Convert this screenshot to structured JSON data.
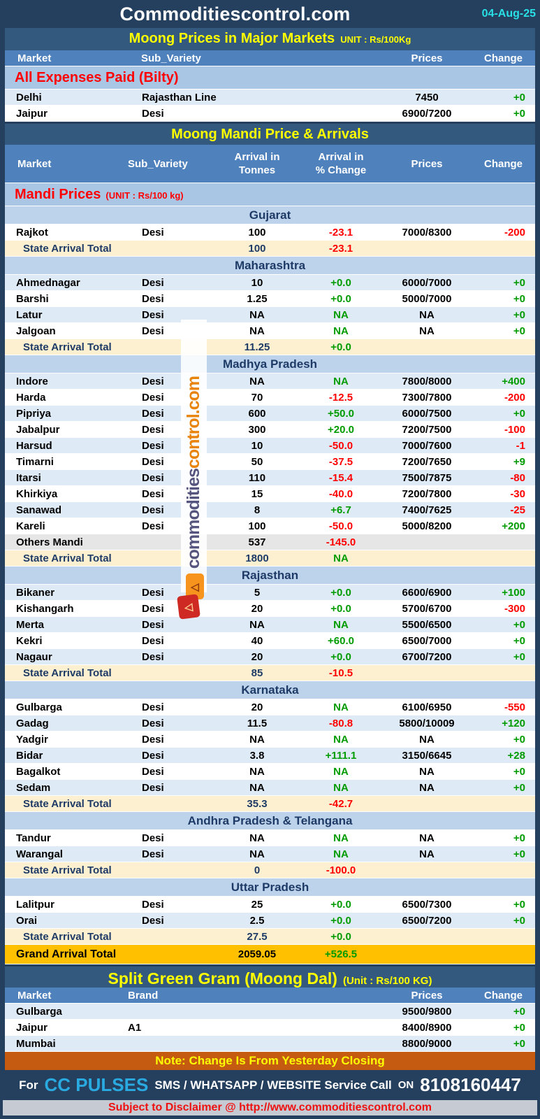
{
  "header": {
    "title": "Commoditiescontrol.com",
    "date": "04-Aug-25"
  },
  "colors": {
    "frame_navy": "#24405E",
    "section_bar": "#33597E",
    "column_header": "#4F81BD",
    "label_band": "#A9C6E5",
    "state_band": "#BDD3EB",
    "row_blue": "#DEEAF6",
    "total_cream": "#FDF0D0",
    "others_gray": "#E7E6E6",
    "grand_gold": "#FFC000",
    "note_orange": "#C55A11",
    "disclaimer_gray": "#C6CAD2",
    "red": "#FF0000",
    "green": "#009B00",
    "navy_text": "#1E3A66",
    "yellow": "#FFFF00",
    "date_cyan": "#29E0E6",
    "cc_pulses_cyan": "#29ABE2",
    "watermark_dark": "#54547E",
    "watermark_orange": "#E8830C"
  },
  "major_markets": {
    "title": "Moong Prices in Major Markets",
    "unit": "UNIT : Rs/100Kg",
    "columns": {
      "market": "Market",
      "sub_variety": "Sub_Variety",
      "prices": "Prices",
      "change": "Change"
    },
    "section_label": "All Expenses Paid (Bilty)",
    "rows": [
      {
        "market": "Delhi",
        "sub_variety": "Rajasthan Line",
        "prices": "7450",
        "change": "+0"
      },
      {
        "market": "Jaipur",
        "sub_variety": "Desi",
        "prices": "6900/7200",
        "change": "+0"
      }
    ]
  },
  "mandi": {
    "title": "Moong Mandi Price & Arrivals",
    "columns": {
      "market": "Market",
      "sub_variety": "Sub_Variety",
      "arrival_l1": "Arrival in",
      "arrival_l2": "Tonnes",
      "pct_l1": "Arrival  in",
      "pct_l2": "% Change",
      "prices": "Prices",
      "change": "Change"
    },
    "section_label": "Mandi Prices",
    "section_unit": "(UNIT : Rs/100 kg)",
    "total_label": "State Arrival Total",
    "states": [
      {
        "name": "Gujarat",
        "first_shade": "w",
        "rows": [
          {
            "market": "Rajkot",
            "sub": "Desi",
            "arrival": "100",
            "pct": "-23.1",
            "prices": "7000/8300",
            "change": "-200"
          }
        ],
        "total": {
          "arrival": "100",
          "pct": "-23.1"
        }
      },
      {
        "name": "Maharashtra",
        "first_shade": "b",
        "rows": [
          {
            "market": "Ahmednagar",
            "sub": "Desi",
            "arrival": "10",
            "pct": "+0.0",
            "prices": "6000/7000",
            "change": "+0"
          },
          {
            "market": "Barshi",
            "sub": "Desi",
            "arrival": "1.25",
            "pct": "+0.0",
            "prices": "5000/7000",
            "change": "+0"
          },
          {
            "market": "Latur",
            "sub": "Desi",
            "arrival": "NA",
            "pct": "NA",
            "prices": "NA",
            "change": "+0"
          },
          {
            "market": "Jalgoan",
            "sub": "Desi",
            "arrival": "NA",
            "pct": "NA",
            "prices": "NA",
            "change": "+0"
          }
        ],
        "total": {
          "arrival": "11.25",
          "pct": "+0.0"
        }
      },
      {
        "name": "Madhya Pradesh",
        "first_shade": "b",
        "rows": [
          {
            "market": "Indore",
            "sub": "Desi",
            "arrival": "NA",
            "pct": "NA",
            "prices": "7800/8000",
            "change": "+400"
          },
          {
            "market": "Harda",
            "sub": "Desi",
            "arrival": "70",
            "pct": "-12.5",
            "prices": "7300/7800",
            "change": "-200"
          },
          {
            "market": "Pipriya",
            "sub": "Desi",
            "arrival": "600",
            "pct": "+50.0",
            "prices": "6000/7500",
            "change": "+0"
          },
          {
            "market": "Jabalpur",
            "sub": "Desi",
            "arrival": "300",
            "pct": "+20.0",
            "prices": "7200/7500",
            "change": "-100"
          },
          {
            "market": "Harsud",
            "sub": "Desi",
            "arrival": "10",
            "pct": "-50.0",
            "prices": "7000/7600",
            "change": "-1"
          },
          {
            "market": "Timarni",
            "sub": "Desi",
            "arrival": "50",
            "pct": "-37.5",
            "prices": "7200/7650",
            "change": "+9"
          },
          {
            "market": "Itarsi",
            "sub": "Desi",
            "arrival": "110",
            "pct": "-15.4",
            "prices": "7500/7875",
            "change": "-80"
          },
          {
            "market": "Khirkiya",
            "sub": "Desi",
            "arrival": "15",
            "pct": "-40.0",
            "prices": "7200/7800",
            "change": "-30"
          },
          {
            "market": "Sanawad",
            "sub": "Desi",
            "arrival": "8",
            "pct": "+6.7",
            "prices": "7400/7625",
            "change": "-25"
          },
          {
            "market": "Kareli",
            "sub": "Desi",
            "arrival": "100",
            "pct": "-50.0",
            "prices": "5000/8200",
            "change": "+200"
          },
          {
            "market": "Others Mandi",
            "sub": "",
            "arrival": "537",
            "pct": "-145.0",
            "prices": "",
            "change": "",
            "special": "others"
          }
        ],
        "total": {
          "arrival": "1800",
          "pct": "NA"
        }
      },
      {
        "name": "Rajasthan",
        "first_shade": "b",
        "rows": [
          {
            "market": "Bikaner",
            "sub": "Desi",
            "arrival": "5",
            "pct": "+0.0",
            "prices": "6600/6900",
            "change": "+100"
          },
          {
            "market": "Kishangarh",
            "sub": "Desi",
            "arrival": "20",
            "pct": "+0.0",
            "prices": "5700/6700",
            "change": "-300"
          },
          {
            "market": "Merta",
            "sub": "Desi",
            "arrival": "NA",
            "pct": "NA",
            "prices": "5500/6500",
            "change": "+0"
          },
          {
            "market": "Kekri",
            "sub": "Desi",
            "arrival": "40",
            "pct": "+60.0",
            "prices": "6500/7000",
            "change": "+0"
          },
          {
            "market": "Nagaur",
            "sub": "Desi",
            "arrival": "20",
            "pct": "+0.0",
            "prices": "6700/7200",
            "change": "+0"
          }
        ],
        "total": {
          "arrival": "85",
          "pct": "-10.5"
        }
      },
      {
        "name": "Karnataka",
        "first_shade": "w",
        "rows": [
          {
            "market": "Gulbarga",
            "sub": "Desi",
            "arrival": "20",
            "pct": "NA",
            "prices": "6100/6950",
            "change": "-550"
          },
          {
            "market": "Gadag",
            "sub": "Desi",
            "arrival": "11.5",
            "pct": "-80.8",
            "prices": "5800/10009",
            "change": "+120"
          },
          {
            "market": "Yadgir",
            "sub": "Desi",
            "arrival": "NA",
            "pct": "NA",
            "prices": "NA",
            "change": "+0"
          },
          {
            "market": "Bidar",
            "sub": "Desi",
            "arrival": "3.8",
            "pct": "+111.1",
            "prices": "3150/6645",
            "change": "+28"
          },
          {
            "market": "Bagalkot",
            "sub": "Desi",
            "arrival": "NA",
            "pct": "NA",
            "prices": "NA",
            "change": "+0"
          },
          {
            "market": "Sedam",
            "sub": "Desi",
            "arrival": "NA",
            "pct": "NA",
            "prices": "NA",
            "change": "+0"
          }
        ],
        "total": {
          "arrival": "35.3",
          "pct": "-42.7"
        }
      },
      {
        "name": "Andhra Pradesh & Telangana",
        "first_shade": "w",
        "rows": [
          {
            "market": "Tandur",
            "sub": "Desi",
            "arrival": "NA",
            "pct": "NA",
            "prices": "NA",
            "change": "+0"
          },
          {
            "market": "Warangal",
            "sub": "Desi",
            "arrival": "NA",
            "pct": "NA",
            "prices": "NA",
            "change": "+0"
          }
        ],
        "total": {
          "arrival": "0",
          "pct": "-100.0"
        }
      },
      {
        "name": "Uttar Pradesh",
        "first_shade": "w",
        "rows": [
          {
            "market": "Lalitpur",
            "sub": "Desi",
            "arrival": "25",
            "pct": "+0.0",
            "prices": "6500/7300",
            "change": "+0"
          },
          {
            "market": "Orai",
            "sub": "Desi",
            "arrival": "2.5",
            "pct": "+0.0",
            "prices": "6500/7200",
            "change": "+0"
          }
        ],
        "total": {
          "arrival": "27.5",
          "pct": "+0.0"
        }
      }
    ],
    "grand_total": {
      "label": "Grand Arrival Total",
      "arrival": "2059.05",
      "pct": "+526.5"
    }
  },
  "split": {
    "title": "Split Green Gram (Moong Dal)",
    "unit": "(Unit : Rs/100 KG)",
    "columns": {
      "market": "Market",
      "brand": "Brand",
      "prices": "Prices",
      "change": "Change"
    },
    "rows": [
      {
        "market": "Gulbarga",
        "brand": "",
        "prices": "9500/9800",
        "change": "+0"
      },
      {
        "market": "Jaipur",
        "brand": "A1",
        "prices": "8400/8900",
        "change": "+0"
      },
      {
        "market": "Mumbai",
        "brand": "",
        "prices": "8800/9000",
        "change": "+0"
      }
    ]
  },
  "footer": {
    "note": "Note: Change Is From Yesterday Closing",
    "service": {
      "prefix": "For",
      "brand": "CC PULSES",
      "middle": "SMS / WHATSAPP / WEBSITE Service Call",
      "on": "ON",
      "phone": "8108160447"
    },
    "disclaimer": "Subject to Disclaimer @  http://www.commoditiescontrol.com"
  },
  "watermark": {
    "dark_part": "commodities",
    "orange_part": "control.com"
  }
}
